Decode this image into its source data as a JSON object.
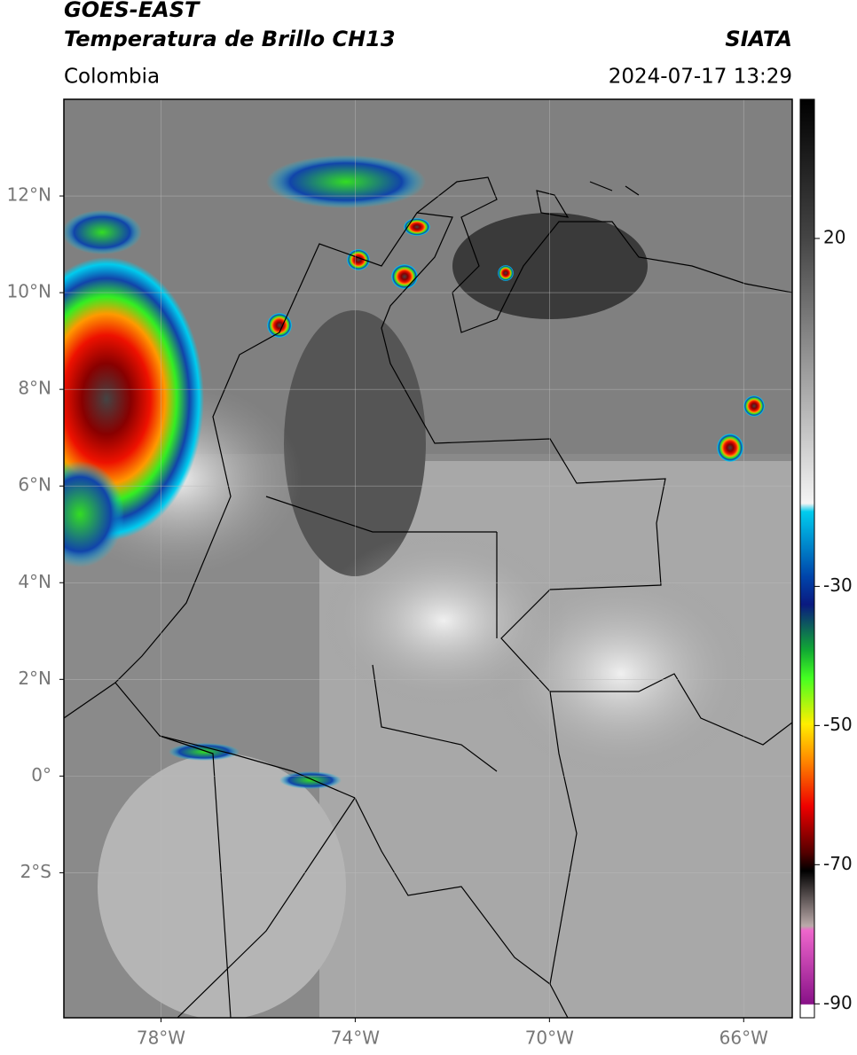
{
  "header": {
    "title_line1": "GOES-EAST",
    "title_line2": "Temperatura de Brillo CH13",
    "region": "Colombia",
    "source": "SIATA",
    "timestamp": "2024-07-17 13:29"
  },
  "map": {
    "lonlim": [
      -80,
      -65
    ],
    "latlim": [
      -5,
      14
    ],
    "grid": true,
    "lon_ticks": [
      {
        "value": -78,
        "label": "78°W"
      },
      {
        "value": -74,
        "label": "74°W"
      },
      {
        "value": -70,
        "label": "70°W"
      },
      {
        "value": -66,
        "label": "66°W"
      }
    ],
    "lat_ticks": [
      {
        "value": 12,
        "label": "12°N"
      },
      {
        "value": 10,
        "label": "10°N"
      },
      {
        "value": 8,
        "label": "8°N"
      },
      {
        "value": 6,
        "label": "6°N"
      },
      {
        "value": 4,
        "label": "4°N"
      },
      {
        "value": 2,
        "label": "2°N"
      },
      {
        "value": 0,
        "label": "0°"
      },
      {
        "value": -2,
        "label": "2°S"
      }
    ]
  },
  "colorbar": {
    "lim": [
      -92,
      40
    ],
    "ticks": [
      20,
      -30,
      -50,
      -70,
      -90
    ]
  }
}
